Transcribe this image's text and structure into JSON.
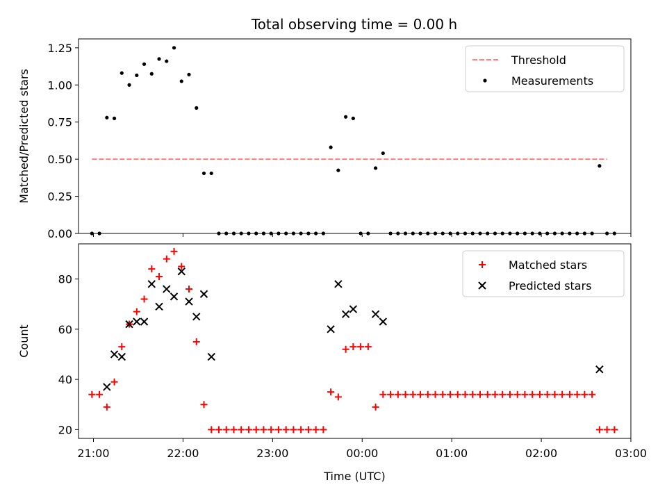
{
  "figure": {
    "title": "Total observing time = 0.00 h"
  },
  "chart_data": [
    {
      "type": "scatter",
      "ylabel": "Matched/Predicted stars",
      "xlabel": "",
      "xlim": [
        "20:50",
        "03:00"
      ],
      "ylim": [
        0,
        1.31
      ],
      "yticks": [
        "0.00",
        "0.25",
        "0.50",
        "0.75",
        "1.00",
        "1.25"
      ],
      "legend": {
        "placement": "top-right",
        "entries": [
          "Threshold",
          "Measurements"
        ]
      },
      "threshold": {
        "name": "Threshold",
        "value": 0.5,
        "x_start": "20:59",
        "x_end": "02:44",
        "color": "#ff7f7f"
      },
      "series": [
        {
          "name": "Measurements",
          "color": "#000000",
          "points": [
            [
              "20:59",
              0
            ],
            [
              "21:04",
              0
            ],
            [
              "21:09",
              0.78
            ],
            [
              "21:14",
              0.775
            ],
            [
              "21:19",
              1.08
            ],
            [
              "21:24",
              1.0
            ],
            [
              "21:29",
              1.065
            ],
            [
              "21:34",
              1.14
            ],
            [
              "21:39",
              1.075
            ],
            [
              "21:44",
              1.175
            ],
            [
              "21:49",
              1.16
            ],
            [
              "21:54",
              1.25
            ],
            [
              "21:59",
              1.025
            ],
            [
              "22:04",
              1.07
            ],
            [
              "22:09",
              0.845
            ],
            [
              "22:14",
              0.405
            ],
            [
              "22:19",
              0.405
            ],
            [
              "22:24",
              0
            ],
            [
              "22:29",
              0
            ],
            [
              "22:34",
              0
            ],
            [
              "22:39",
              0
            ],
            [
              "22:44",
              0
            ],
            [
              "22:49",
              0
            ],
            [
              "22:54",
              0
            ],
            [
              "22:59",
              0
            ],
            [
              "23:04",
              0
            ],
            [
              "23:09",
              0
            ],
            [
              "23:14",
              0
            ],
            [
              "23:19",
              0
            ],
            [
              "23:24",
              0
            ],
            [
              "23:29",
              0
            ],
            [
              "23:34",
              0
            ],
            [
              "23:39",
              0.58
            ],
            [
              "23:44",
              0.425
            ],
            [
              "23:49",
              0.785
            ],
            [
              "23:54",
              0.775
            ],
            [
              "23:59",
              0
            ],
            [
              "00:04",
              0
            ],
            [
              "00:09",
              0.44
            ],
            [
              "00:14",
              0.54
            ],
            [
              "00:19",
              0
            ],
            [
              "00:24",
              0
            ],
            [
              "00:29",
              0
            ],
            [
              "00:34",
              0
            ],
            [
              "00:39",
              0
            ],
            [
              "00:44",
              0
            ],
            [
              "00:49",
              0
            ],
            [
              "00:54",
              0
            ],
            [
              "00:59",
              0
            ],
            [
              "01:04",
              0
            ],
            [
              "01:09",
              0
            ],
            [
              "01:14",
              0
            ],
            [
              "01:19",
              0
            ],
            [
              "01:24",
              0
            ],
            [
              "01:29",
              0
            ],
            [
              "01:34",
              0
            ],
            [
              "01:39",
              0
            ],
            [
              "01:44",
              0
            ],
            [
              "01:49",
              0
            ],
            [
              "01:54",
              0
            ],
            [
              "01:59",
              0
            ],
            [
              "02:04",
              0
            ],
            [
              "02:09",
              0
            ],
            [
              "02:14",
              0
            ],
            [
              "02:19",
              0
            ],
            [
              "02:24",
              0
            ],
            [
              "02:29",
              0
            ],
            [
              "02:34",
              0
            ],
            [
              "02:39",
              0.455
            ],
            [
              "02:44",
              0
            ],
            [
              "02:49",
              0
            ]
          ]
        }
      ]
    },
    {
      "type": "scatter",
      "ylabel": "Count",
      "xlabel": "Time (UTC)",
      "xlim": [
        "20:50",
        "03:00"
      ],
      "ylim": [
        16.5,
        94
      ],
      "yticks": [
        "20",
        "40",
        "60",
        "80"
      ],
      "xticks": [
        "21:00",
        "22:00",
        "23:00",
        "00:00",
        "01:00",
        "02:00",
        "03:00"
      ],
      "legend": {
        "placement": "top-right",
        "entries": [
          "Matched stars",
          "Predicted stars"
        ]
      },
      "series": [
        {
          "name": "Matched stars",
          "color": "#ff0000",
          "marker": "plus",
          "points": [
            [
              "20:59",
              34
            ],
            [
              "21:04",
              34
            ],
            [
              "21:09",
              29
            ],
            [
              "21:14",
              39
            ],
            [
              "21:19",
              53
            ],
            [
              "21:24",
              62
            ],
            [
              "21:29",
              67
            ],
            [
              "21:34",
              72
            ],
            [
              "21:39",
              84
            ],
            [
              "21:44",
              81
            ],
            [
              "21:49",
              88
            ],
            [
              "21:54",
              91
            ],
            [
              "21:59",
              85
            ],
            [
              "22:04",
              76
            ],
            [
              "22:09",
              55
            ],
            [
              "22:14",
              30
            ],
            [
              "22:19",
              20
            ],
            [
              "22:24",
              20
            ],
            [
              "22:29",
              20
            ],
            [
              "22:34",
              20
            ],
            [
              "22:39",
              20
            ],
            [
              "22:44",
              20
            ],
            [
              "22:49",
              20
            ],
            [
              "22:54",
              20
            ],
            [
              "22:59",
              20
            ],
            [
              "23:04",
              20
            ],
            [
              "23:09",
              20
            ],
            [
              "23:14",
              20
            ],
            [
              "23:19",
              20
            ],
            [
              "23:24",
              20
            ],
            [
              "23:29",
              20
            ],
            [
              "23:34",
              20
            ],
            [
              "23:39",
              35
            ],
            [
              "23:44",
              33
            ],
            [
              "23:49",
              52
            ],
            [
              "23:54",
              53
            ],
            [
              "23:59",
              53
            ],
            [
              "00:04",
              53
            ],
            [
              "00:09",
              29
            ],
            [
              "00:14",
              34
            ],
            [
              "00:19",
              34
            ],
            [
              "00:24",
              34
            ],
            [
              "00:29",
              34
            ],
            [
              "00:34",
              34
            ],
            [
              "00:39",
              34
            ],
            [
              "00:44",
              34
            ],
            [
              "00:49",
              34
            ],
            [
              "00:54",
              34
            ],
            [
              "00:59",
              34
            ],
            [
              "01:04",
              34
            ],
            [
              "01:09",
              34
            ],
            [
              "01:14",
              34
            ],
            [
              "01:19",
              34
            ],
            [
              "01:24",
              34
            ],
            [
              "01:29",
              34
            ],
            [
              "01:34",
              34
            ],
            [
              "01:39",
              34
            ],
            [
              "01:44",
              34
            ],
            [
              "01:49",
              34
            ],
            [
              "01:54",
              34
            ],
            [
              "01:59",
              34
            ],
            [
              "02:04",
              34
            ],
            [
              "02:09",
              34
            ],
            [
              "02:14",
              34
            ],
            [
              "02:19",
              34
            ],
            [
              "02:24",
              34
            ],
            [
              "02:29",
              34
            ],
            [
              "02:34",
              34
            ],
            [
              "02:39",
              20
            ],
            [
              "02:44",
              20
            ],
            [
              "02:49",
              20
            ]
          ]
        },
        {
          "name": "Predicted stars",
          "color": "#000000",
          "marker": "x",
          "points": [
            [
              "21:09",
              37
            ],
            [
              "21:14",
              50
            ],
            [
              "21:19",
              49
            ],
            [
              "21:24",
              62
            ],
            [
              "21:29",
              63
            ],
            [
              "21:34",
              63
            ],
            [
              "21:39",
              78
            ],
            [
              "21:44",
              69
            ],
            [
              "21:49",
              76
            ],
            [
              "21:54",
              73
            ],
            [
              "21:59",
              83
            ],
            [
              "22:04",
              71
            ],
            [
              "22:09",
              65
            ],
            [
              "22:14",
              74
            ],
            [
              "22:19",
              49
            ],
            [
              "23:39",
              60
            ],
            [
              "23:44",
              78
            ],
            [
              "23:49",
              66
            ],
            [
              "23:54",
              68
            ],
            [
              "00:09",
              66
            ],
            [
              "00:14",
              63
            ],
            [
              "02:39",
              44
            ]
          ]
        }
      ]
    }
  ]
}
